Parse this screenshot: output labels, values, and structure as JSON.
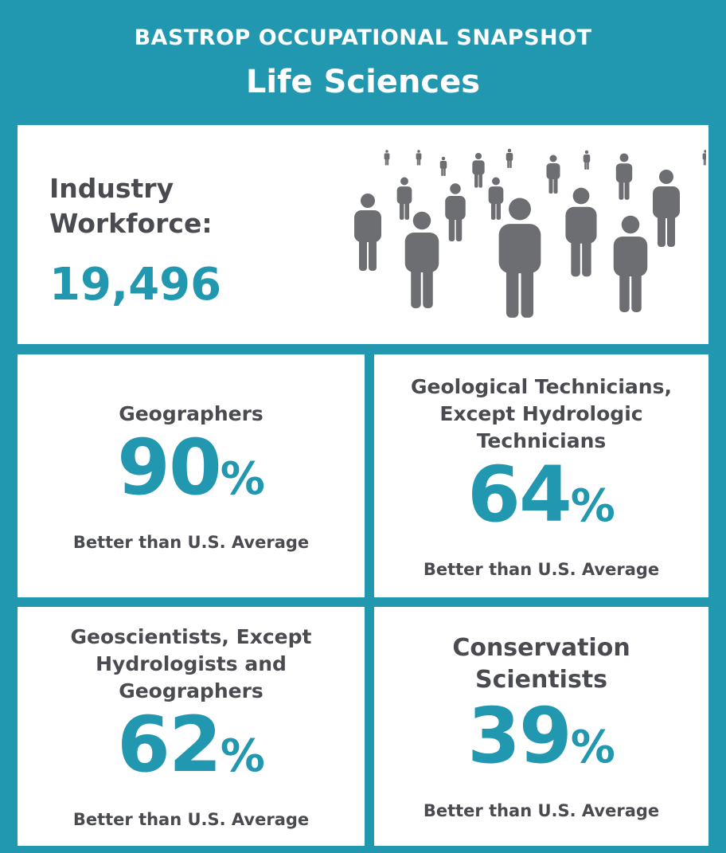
{
  "header": {
    "title": "BASTROP OCCUPATIONAL SNAPSHOT",
    "subtitle": "Life Sciences"
  },
  "workforce": {
    "label": "Industry Workforce:",
    "value": "19,496"
  },
  "cards": [
    {
      "occupation": "Geographers",
      "value": 90,
      "unit": "%",
      "note": "Better than U.S. Average"
    },
    {
      "occupation": "Geological Technicians, Except Hydrologic Technicians",
      "value": 64,
      "unit": "%",
      "note": "Better than U.S. Average"
    },
    {
      "occupation": "Geoscientists, Except Hydrologists and Geographers",
      "value": 62,
      "unit": "%",
      "note": "Better than U.S. Average"
    },
    {
      "occupation": "Conservation Scientists",
      "value": 39,
      "unit": "%",
      "note": "Better than U.S. Average"
    }
  ]
}
